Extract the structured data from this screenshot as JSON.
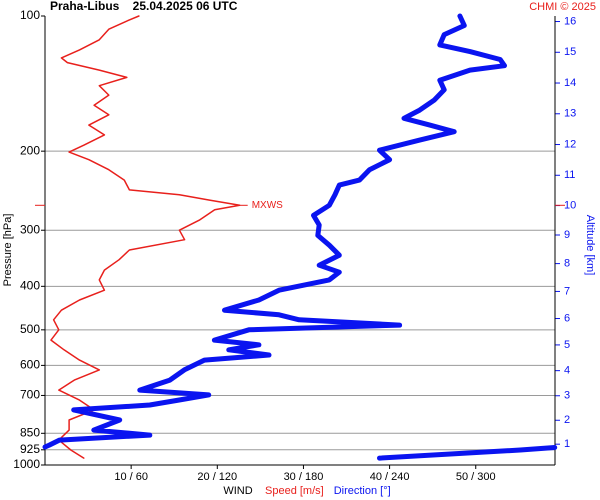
{
  "chart_data": {
    "type": "line",
    "title": "Praha-Libus    25.04.2025 06 UTC",
    "credit": "CHMI © 2025",
    "ylabel": "Pressure [hPa]",
    "y2label": "Altitude [km]",
    "xlabel": "WIND",
    "annotation": "MXWS",
    "ylim": [
      100,
      1000
    ],
    "ylog": true,
    "yticks": [
      100,
      200,
      300,
      400,
      500,
      600,
      700,
      850,
      925,
      1000
    ],
    "y2ticks": [
      1,
      2,
      3,
      4,
      5,
      6,
      7,
      8,
      9,
      10,
      11,
      12,
      13,
      14,
      15,
      16
    ],
    "xlim": [
      0,
      59.2
    ],
    "x2lim": [
      0,
      355.2
    ],
    "xticks": [
      {
        "value": 10,
        "label": "10 / 60"
      },
      {
        "value": 20,
        "label": "20 / 120"
      },
      {
        "value": 30,
        "label": "30 / 180"
      },
      {
        "value": 40,
        "label": "40 / 240"
      },
      {
        "value": 50,
        "label": "50 / 300"
      }
    ],
    "grid": true,
    "series": [
      {
        "name": "Speed [m/s]",
        "color": "#e8201c",
        "axis": "x",
        "y": [
          100,
          102,
          107,
          113,
          119,
          124,
          127,
          132,
          137,
          143,
          150,
          158,
          166,
          175,
          184,
          194,
          201,
          209,
          220,
          232,
          244,
          250,
          257,
          264,
          270,
          285,
          300,
          315,
          332,
          349,
          368,
          387,
          408,
          429,
          452,
          475,
          500,
          527,
          554,
          584,
          614,
          647,
          681,
          717,
          754,
          794,
          836,
          880,
          926,
          965
        ],
        "values": [
          10.9,
          9.8,
          7.4,
          6.3,
          4.0,
          1.9,
          2.6,
          6.3,
          9.5,
          6.3,
          7.4,
          5.7,
          7.4,
          5.1,
          6.9,
          4.5,
          2.8,
          5.1,
          7.4,
          9.2,
          9.8,
          15.6,
          19.1,
          22.6,
          19.7,
          17.9,
          15.6,
          16.2,
          9.8,
          8.6,
          6.9,
          6.3,
          6.9,
          4.0,
          1.9,
          1.0,
          1.6,
          0.7,
          2.2,
          4.0,
          6.3,
          3.4,
          1.6,
          4.0,
          5.7,
          2.8,
          2.8,
          1.6,
          3.0,
          4.5
        ]
      },
      {
        "name": "Direction [°]",
        "color": "#0a14f0",
        "axis": "x2",
        "y": [
          100,
          105,
          110,
          116,
          120,
          125,
          129,
          132,
          139,
          146,
          154,
          162,
          169,
          175,
          181,
          189,
          199,
          209,
          220,
          232,
          238,
          250,
          264,
          278,
          292,
          308,
          324,
          341,
          359,
          372,
          387,
          408,
          429,
          452,
          463,
          475,
          488,
          500,
          527,
          540,
          554,
          569,
          584,
          614,
          647,
          681,
          698,
          717,
          735,
          754,
          794,
          836,
          858,
          880,
          903,
          912,
          null,
          914,
          926,
          965
        ],
        "values": [
          289,
          292,
          278,
          275,
          296,
          317,
          320,
          296,
          275,
          278,
          271,
          261,
          250,
          268,
          285,
          261,
          233,
          240,
          226,
          219,
          205,
          202,
          198,
          187,
          191,
          190,
          198,
          205,
          191,
          205,
          198,
          163,
          149,
          125,
          163,
          177,
          247,
          142,
          118,
          149,
          128,
          156,
          111,
          97,
          87,
          66,
          114,
          93,
          73,
          20,
          52,
          34,
          73,
          10,
          3,
          0,
          null,
          355,
          331,
          233
        ]
      }
    ]
  }
}
